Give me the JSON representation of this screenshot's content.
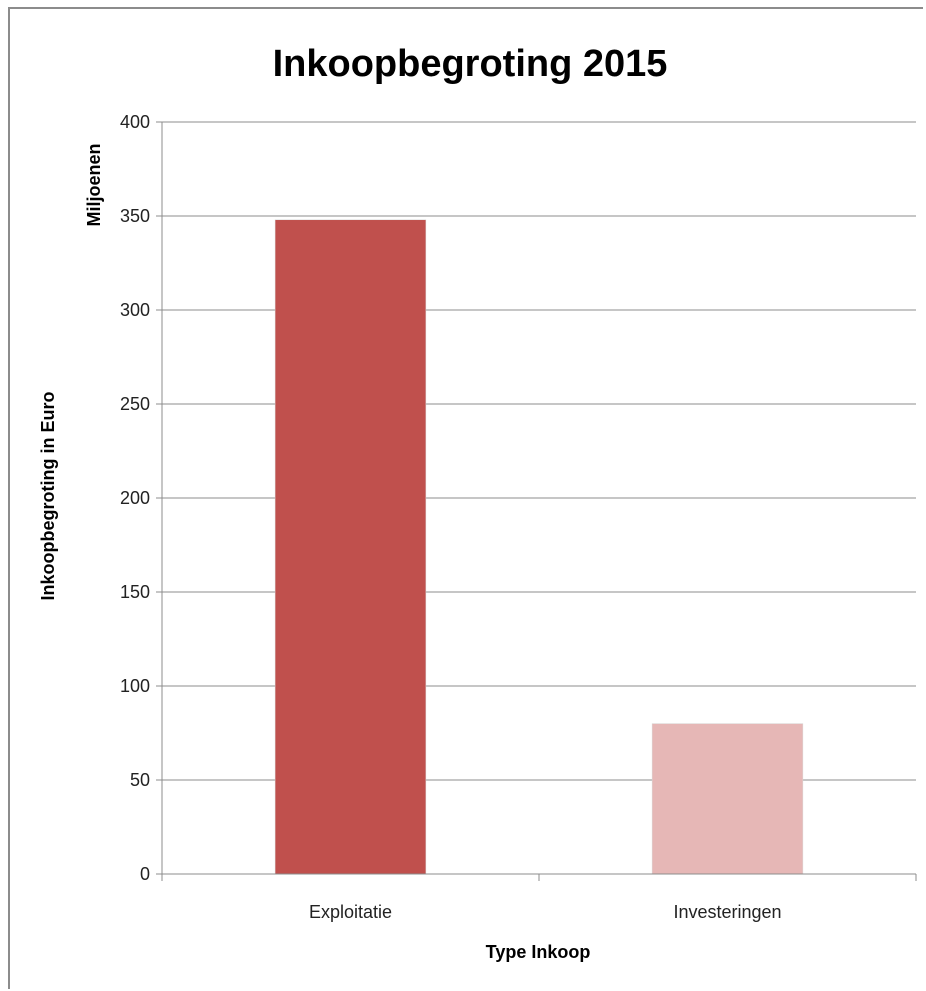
{
  "chart_data": {
    "type": "bar",
    "title": "Inkoopbegroting 2015",
    "categories": [
      "Exploitatie",
      "Investeringen"
    ],
    "values": [
      348,
      80
    ],
    "colors": [
      "#c0504d",
      "#e6b7b6"
    ],
    "xlabel": "Type Inkoop",
    "ylabel": "Inkoopbegroting in Euro",
    "yunit": "Miljoenen",
    "ylim": [
      0,
      400
    ],
    "yticks": [
      0,
      50,
      100,
      150,
      200,
      250,
      300,
      350,
      400
    ],
    "grid": true,
    "gridColor": "#8c8c8c"
  }
}
